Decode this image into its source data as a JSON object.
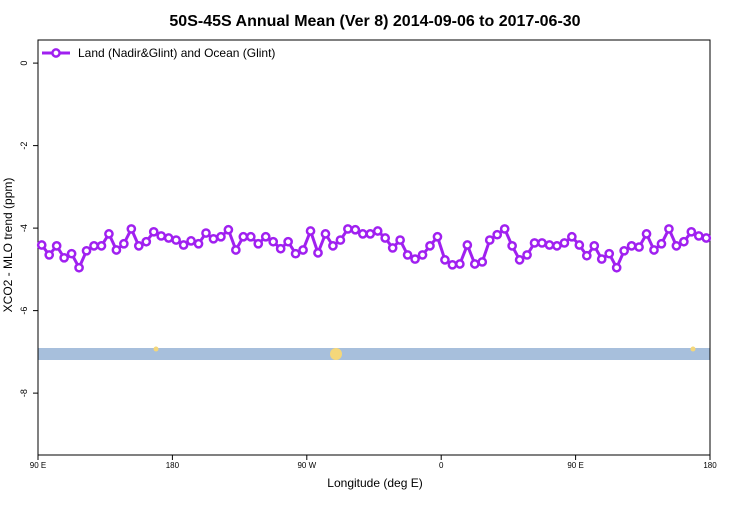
{
  "chart_data": {
    "type": "line",
    "title": "50S-45S Annual Mean (Ver 8)   2014-09-06 to 2017-06-30",
    "x_label": "Longitude (deg E)",
    "y_label": "XCO2 - MLO trend (ppm)",
    "x": [
      92.5,
      97.5,
      102.5,
      107.5,
      112.5,
      117.5,
      122.5,
      127.5,
      132.5,
      137.5,
      142.5,
      147.5,
      152.5,
      157.5,
      162.5,
      167.5,
      172.5,
      177.5,
      182.5,
      187.5,
      192.5,
      197.5,
      202.5,
      207.5,
      212.5,
      217.5,
      222.5,
      227.5,
      232.5,
      237.5,
      242.5,
      247.5,
      252.5,
      257.5,
      262.5,
      267.5,
      272.5,
      277.5,
      282.5,
      287.5,
      292.5,
      297.5,
      302.5,
      307.5,
      312.5,
      317.5,
      322.5,
      327.5,
      332.5,
      337.5,
      342.5,
      347.5,
      352.5,
      357.5,
      362.5,
      367.5,
      372.5,
      377.5,
      382.5,
      387.5,
      392.5,
      397.5,
      402.5,
      407.5,
      412.5,
      417.5,
      422.5,
      427.5,
      432.5,
      437.5,
      442.5,
      447.5,
      452.5,
      457.5,
      462.5,
      467.5,
      472.5,
      477.5,
      482.5,
      487.5,
      492.5,
      497.5,
      502.5,
      507.5,
      512.5,
      517.5,
      522.5,
      527.5,
      532.5,
      537.5
    ],
    "series": [
      {
        "name": "Land (Nadir&Glint) and Ocean (Glint)",
        "color": "#a020f0",
        "values": [
          -4.41,
          -4.65,
          -4.43,
          -4.72,
          -4.62,
          -4.96,
          -4.55,
          -4.43,
          -4.43,
          -4.14,
          -4.53,
          -4.38,
          -4.02,
          -4.43,
          -4.33,
          -4.09,
          -4.19,
          -4.24,
          -4.29,
          -4.41,
          -4.31,
          -4.38,
          -4.12,
          -4.26,
          -4.21,
          -4.04,
          -4.53,
          -4.21,
          -4.21,
          -4.38,
          -4.21,
          -4.33,
          -4.5,
          -4.33,
          -4.62,
          -4.53,
          -4.07,
          -4.6,
          -4.14,
          -4.43,
          -4.29,
          -4.02,
          -4.04,
          -4.14,
          -4.14,
          -4.07,
          -4.24,
          -4.48,
          -4.29,
          -4.65,
          -4.75,
          -4.65,
          -4.43,
          -4.21,
          -4.77,
          -4.89,
          -4.87,
          -4.41,
          -4.87,
          -4.82,
          -4.29,
          -4.16,
          -4.02,
          -4.43,
          -4.77,
          -4.65,
          -4.36,
          -4.36,
          -4.41,
          -4.43,
          -4.36,
          -4.21,
          -4.41,
          -4.67,
          -4.43,
          -4.75,
          -4.62,
          -4.96,
          -4.55,
          -4.43,
          -4.46,
          -4.14,
          -4.53,
          -4.38,
          -4.02,
          -4.43,
          -4.33,
          -4.09,
          -4.19,
          -4.24
        ]
      }
    ],
    "xlim": [
      90,
      540
    ],
    "xticks": [
      {
        "value": 90,
        "label": "90 E"
      },
      180,
      {
        "value": 270,
        "label": "90 W"
      },
      {
        "value": 360,
        "label": "0"
      },
      {
        "value": 450,
        "label": "90 E"
      },
      {
        "value": 540,
        "label": "180"
      }
    ],
    "ylim": [
      -9.5,
      0.56
    ],
    "yticks": [
      0,
      -2,
      -4,
      -6,
      -8
    ],
    "legend": "top-left"
  }
}
